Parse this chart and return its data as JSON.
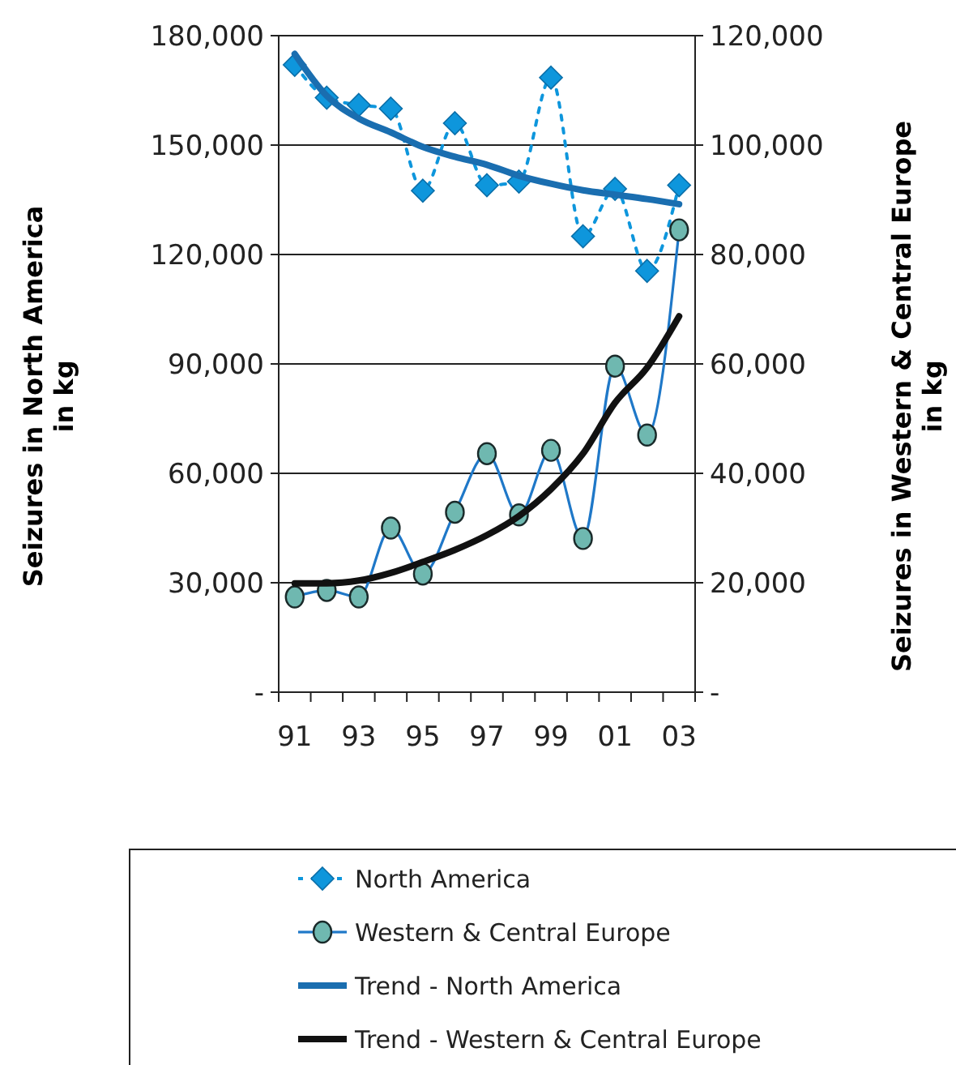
{
  "chart_data": {
    "type": "line",
    "ylabel": "Seizures in North America\nin kg",
    "y2label": "Seizures in Western & Central Europe\nin kg",
    "categories": [
      "91",
      null,
      "93",
      null,
      "95",
      null,
      "97",
      null,
      "99",
      null,
      "01",
      null,
      "03"
    ],
    "ylim": [
      0,
      180000
    ],
    "yticks": [
      {
        "value": 0,
        "label": "-"
      },
      {
        "value": 30000,
        "label": "30,000"
      },
      {
        "value": 60000,
        "label": "60,000"
      },
      {
        "value": 90000,
        "label": "90,000"
      },
      {
        "value": 120000,
        "label": "120,000"
      },
      {
        "value": 150000,
        "label": "150,000"
      },
      {
        "value": 180000,
        "label": "180,000"
      }
    ],
    "y2lim": [
      0,
      120000
    ],
    "y2ticks": [
      {
        "value": 0,
        "label": "-"
      },
      {
        "value": 20000,
        "label": "20,000"
      },
      {
        "value": 40000,
        "label": "40,000"
      },
      {
        "value": 60000,
        "label": "60,000"
      },
      {
        "value": 80000,
        "label": "80,000"
      },
      {
        "value": 100000,
        "label": "100,000"
      },
      {
        "value": 120000,
        "label": "120,000"
      }
    ],
    "grid": "y",
    "legend": "bottom",
    "series": [
      {
        "name": "North America",
        "color": "#0e96dc",
        "line_style": "dashed",
        "marker": "diamond",
        "values": [
          172000,
          163000,
          161000,
          160000,
          137500,
          156000,
          139000,
          140000,
          168500,
          125000,
          138000,
          115500,
          139000
        ]
      },
      {
        "name": "Western & Central Europe",
        "color": "#1f78c8",
        "colors": [
          "#6fb8b0",
          "#6fb8b0",
          "#6fb8b0",
          "#6fb8b0",
          "#6fb8b0",
          "#6fb8b0",
          "#6fb8b0",
          "#6fb8b0",
          "#6fb8b0",
          "#6fb8b0",
          "#6fb8b0",
          "#6fb8b0",
          "#6fb8b0"
        ],
        "line_style": "solid",
        "marker": "circle",
        "axis": "y2",
        "values": [
          17400,
          18600,
          17400,
          30000,
          21600,
          32900,
          43600,
          32400,
          44200,
          28100,
          59600,
          47000,
          84500
        ]
      },
      {
        "name": "Trend - North America",
        "color": "#1a6eb0",
        "line_style": "solid",
        "marker": "none",
        "values": [
          175000,
          163500,
          157300,
          153500,
          149500,
          146800,
          144600,
          141600,
          139400,
          137600,
          136400,
          135200,
          133800
        ]
      },
      {
        "name": "Trend - Western & Central Europe",
        "color": "#111111",
        "line_style": "solid",
        "marker": "none",
        "axis": "y2",
        "values": [
          19900,
          19900,
          20400,
          21800,
          23800,
          26000,
          28700,
          32200,
          37100,
          43600,
          52900,
          59300,
          68700
        ]
      }
    ]
  }
}
